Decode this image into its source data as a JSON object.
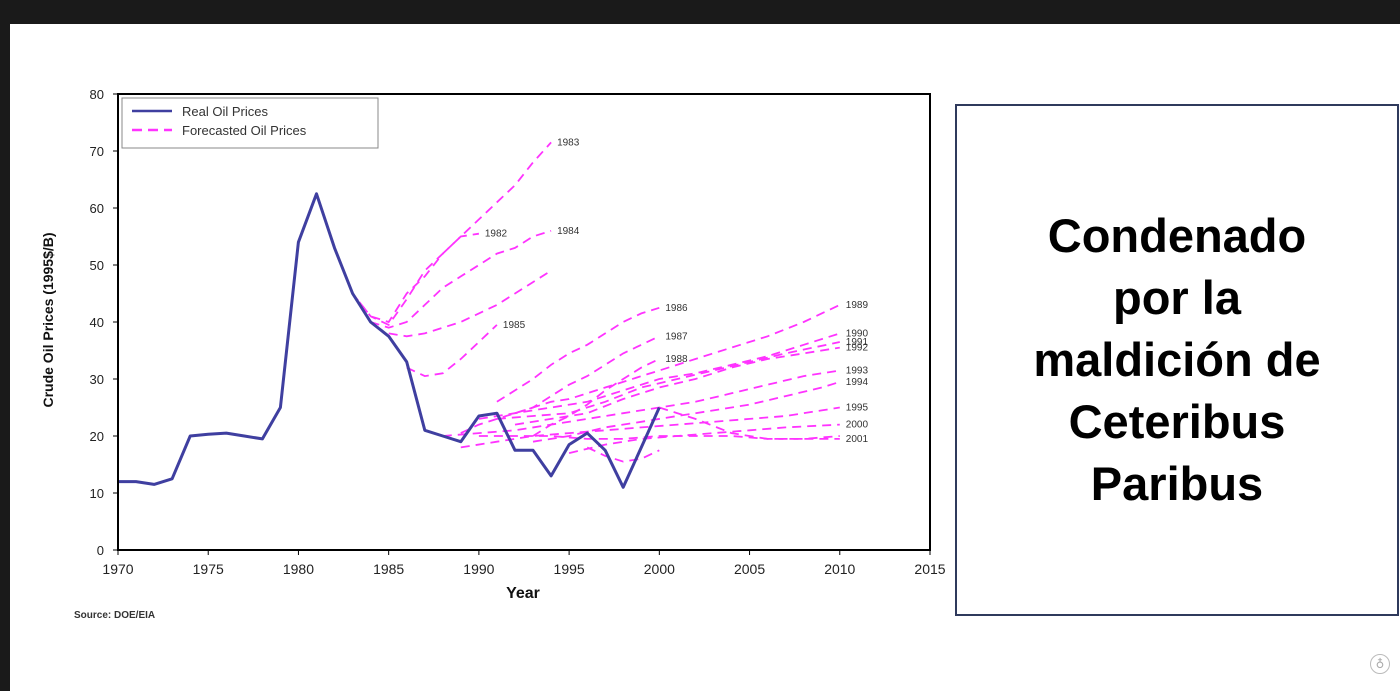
{
  "chart_data": {
    "type": "line",
    "xlabel": "Year",
    "ylabel": "Crude Oil Prices (1995$/B)",
    "xlim": [
      1970,
      2015
    ],
    "ylim": [
      0,
      80
    ],
    "xticks": [
      1970,
      1975,
      1980,
      1985,
      1990,
      1995,
      2000,
      2005,
      2010,
      2015
    ],
    "yticks": [
      0,
      10,
      20,
      30,
      40,
      50,
      60,
      70,
      80
    ],
    "grid": false,
    "legend": {
      "placement": "top-left",
      "entries": [
        "Real Oil Prices",
        "Forecasted Oil Prices"
      ]
    },
    "real": {
      "name": "Real Oil Prices",
      "color": "#3f3fa0",
      "points": [
        [
          1970,
          12
        ],
        [
          1971,
          12
        ],
        [
          1972,
          11.5
        ],
        [
          1973,
          12.5
        ],
        [
          1974,
          20
        ],
        [
          1975,
          20.3
        ],
        [
          1976,
          20.5
        ],
        [
          1977,
          20
        ],
        [
          1978,
          19.5
        ],
        [
          1979,
          25
        ],
        [
          1980,
          54
        ],
        [
          1981,
          62.5
        ],
        [
          1982,
          53
        ],
        [
          1983,
          45
        ],
        [
          1984,
          40
        ],
        [
          1985,
          37.5
        ],
        [
          1986,
          33
        ],
        [
          1987,
          21
        ],
        [
          1988,
          20
        ],
        [
          1989,
          19
        ],
        [
          1990,
          23.5
        ],
        [
          1991,
          24
        ],
        [
          1992,
          17.5
        ],
        [
          1993,
          17.5
        ],
        [
          1994,
          13
        ],
        [
          1995,
          18.5
        ],
        [
          1996,
          20.5
        ],
        [
          1997,
          17.5
        ],
        [
          1998,
          11
        ],
        [
          1999,
          18
        ],
        [
          2000,
          25
        ]
      ]
    },
    "forecast_color": "#ff33ff",
    "forecasts": [
      {
        "label": "1983",
        "points": [
          [
            1983,
            45
          ],
          [
            1984,
            41
          ],
          [
            1985,
            40
          ],
          [
            1986,
            45
          ],
          [
            1987,
            48
          ],
          [
            1988,
            52
          ],
          [
            1989,
            55
          ],
          [
            1990,
            58
          ],
          [
            1991,
            61
          ],
          [
            1992,
            64
          ],
          [
            1993,
            68
          ],
          [
            1994,
            71.5
          ]
        ]
      },
      {
        "label": "1982",
        "points": [
          [
            1982,
            53
          ],
          [
            1983,
            45
          ],
          [
            1984,
            41
          ],
          [
            1985,
            39.5
          ],
          [
            1986,
            44
          ],
          [
            1987,
            49
          ],
          [
            1988,
            52
          ],
          [
            1989,
            55
          ],
          [
            1990,
            55.5
          ]
        ]
      },
      {
        "label": "1984",
        "points": [
          [
            1984,
            40
          ],
          [
            1985,
            39
          ],
          [
            1986,
            40
          ],
          [
            1987,
            43
          ],
          [
            1988,
            46
          ],
          [
            1989,
            48
          ],
          [
            1990,
            50
          ],
          [
            1991,
            52
          ],
          [
            1992,
            53
          ],
          [
            1993,
            55
          ],
          [
            1994,
            56
          ]
        ]
      },
      {
        "label": "",
        "points": [
          [
            1985,
            38
          ],
          [
            1986,
            37.5
          ],
          [
            1987,
            38
          ],
          [
            1988,
            39
          ],
          [
            1989,
            40
          ],
          [
            1990,
            41.5
          ],
          [
            1991,
            43
          ],
          [
            1992,
            45
          ],
          [
            1993,
            47
          ],
          [
            1994,
            49
          ]
        ]
      },
      {
        "label": "1985",
        "points": [
          [
            1986,
            32
          ],
          [
            1987,
            30.5
          ],
          [
            1988,
            31
          ],
          [
            1989,
            33.5
          ],
          [
            1990,
            36.5
          ],
          [
            1991,
            39.5
          ]
        ]
      },
      {
        "label": "1986",
        "points": [
          [
            1991,
            26
          ],
          [
            1992,
            28
          ],
          [
            1993,
            30
          ],
          [
            1994,
            32.5
          ],
          [
            1995,
            34.5
          ],
          [
            1996,
            36
          ],
          [
            1997,
            38
          ],
          [
            1998,
            40
          ],
          [
            1999,
            41.5
          ],
          [
            2000,
            42.5
          ]
        ]
      },
      {
        "label": "1987",
        "points": [
          [
            1992,
            24
          ],
          [
            1993,
            25
          ],
          [
            1994,
            27
          ],
          [
            1995,
            29
          ],
          [
            1996,
            30.5
          ],
          [
            1997,
            32.5
          ],
          [
            1998,
            34.5
          ],
          [
            1999,
            36
          ],
          [
            2000,
            37.5
          ]
        ]
      },
      {
        "label": "1988",
        "points": [
          [
            1993,
            20
          ],
          [
            1994,
            22
          ],
          [
            1995,
            23.5
          ],
          [
            1996,
            25.5
          ],
          [
            1997,
            28
          ],
          [
            1998,
            30
          ],
          [
            1999,
            32
          ],
          [
            2000,
            33.5
          ]
        ]
      },
      {
        "label": "1989",
        "points": [
          [
            1989,
            20.5
          ],
          [
            1990,
            22
          ],
          [
            1991,
            23
          ],
          [
            1992,
            24
          ],
          [
            1993,
            25
          ],
          [
            1994,
            26
          ],
          [
            1995,
            26.5
          ],
          [
            1996,
            27.5
          ],
          [
            1997,
            28.5
          ],
          [
            1998,
            29.5
          ],
          [
            1999,
            30.5
          ],
          [
            2000,
            31.5
          ],
          [
            2002,
            33.5
          ],
          [
            2004,
            35.5
          ],
          [
            2006,
            37.5
          ],
          [
            2008,
            40
          ],
          [
            2010,
            43
          ]
        ]
      },
      {
        "label": "1990",
        "points": [
          [
            1990,
            23
          ],
          [
            1992,
            24
          ],
          [
            1994,
            25
          ],
          [
            1996,
            26
          ],
          [
            1998,
            28
          ],
          [
            2000,
            30
          ],
          [
            2002,
            31
          ],
          [
            2004,
            32.5
          ],
          [
            2006,
            34
          ],
          [
            2008,
            36
          ],
          [
            2010,
            38
          ]
        ]
      },
      {
        "label": "1991",
        "points": [
          [
            1991,
            23
          ],
          [
            1993,
            23.5
          ],
          [
            1995,
            24
          ],
          [
            1997,
            26
          ],
          [
            1999,
            28.5
          ],
          [
            2001,
            30
          ],
          [
            2003,
            31.5
          ],
          [
            2005,
            33
          ],
          [
            2007,
            34.5
          ],
          [
            2010,
            36.5
          ]
        ]
      },
      {
        "label": "1992",
        "points": [
          [
            1992,
            22
          ],
          [
            1994,
            23
          ],
          [
            1996,
            24
          ],
          [
            1998,
            26.5
          ],
          [
            2000,
            28.5
          ],
          [
            2002,
            30
          ],
          [
            2004,
            32
          ],
          [
            2006,
            33.5
          ],
          [
            2008,
            34.5
          ],
          [
            2010,
            35.5
          ]
        ]
      },
      {
        "label": "1993",
        "points": [
          [
            1988,
            20
          ],
          [
            1990,
            20.5
          ],
          [
            1992,
            21
          ],
          [
            1994,
            22
          ],
          [
            1996,
            23
          ],
          [
            1998,
            24
          ],
          [
            2000,
            25
          ],
          [
            2002,
            26
          ],
          [
            2004,
            27.5
          ],
          [
            2006,
            29
          ],
          [
            2008,
            30.5
          ],
          [
            2010,
            31.5
          ]
        ]
      },
      {
        "label": "1994",
        "points": [
          [
            1993,
            19
          ],
          [
            1995,
            20
          ],
          [
            1997,
            21.5
          ],
          [
            1999,
            22.5
          ],
          [
            2001,
            23.5
          ],
          [
            2003,
            24.5
          ],
          [
            2005,
            25.5
          ],
          [
            2007,
            27
          ],
          [
            2009,
            28.5
          ],
          [
            2010,
            29.5
          ]
        ]
      },
      {
        "label": "1995",
        "points": [
          [
            1989,
            18
          ],
          [
            1991,
            19
          ],
          [
            1993,
            20
          ],
          [
            1995,
            20.5
          ],
          [
            1997,
            21
          ],
          [
            1999,
            21.5
          ],
          [
            2001,
            22
          ],
          [
            2003,
            22.5
          ],
          [
            2005,
            23
          ],
          [
            2007,
            23.5
          ],
          [
            2009,
            24.5
          ],
          [
            2010,
            25
          ]
        ]
      },
      {
        "label": "2000",
        "points": [
          [
            1995,
            17
          ],
          [
            1997,
            18.5
          ],
          [
            1999,
            19.5
          ],
          [
            2001,
            20
          ],
          [
            2003,
            20.5
          ],
          [
            2005,
            21
          ],
          [
            2007,
            21.5
          ],
          [
            2010,
            22
          ]
        ]
      },
      {
        "label": "2001",
        "points": [
          [
            2000,
            25
          ],
          [
            2002,
            23
          ],
          [
            2004,
            20.5
          ],
          [
            2006,
            19.5
          ],
          [
            2008,
            19.5
          ],
          [
            2010,
            19.5
          ]
        ]
      },
      {
        "label": "",
        "points": [
          [
            1990,
            20
          ],
          [
            1992,
            20
          ],
          [
            1994,
            20
          ],
          [
            1996,
            19.5
          ],
          [
            1998,
            19.5
          ],
          [
            2000,
            20
          ],
          [
            2002,
            20
          ],
          [
            2004,
            20
          ],
          [
            2006,
            19.5
          ],
          [
            2008,
            19.5
          ],
          [
            2010,
            20
          ]
        ]
      },
      {
        "label": "",
        "points": [
          [
            1996,
            18
          ],
          [
            1997,
            16.5
          ],
          [
            1998,
            15.5
          ],
          [
            1999,
            16
          ],
          [
            2000,
            17.5
          ]
        ]
      }
    ]
  },
  "caption": "Condenado\npor la\nmaldición de\nCeteribus\nParibus",
  "source": "Source:  DOE/EIA",
  "logo_icon": "globe-seal-icon"
}
